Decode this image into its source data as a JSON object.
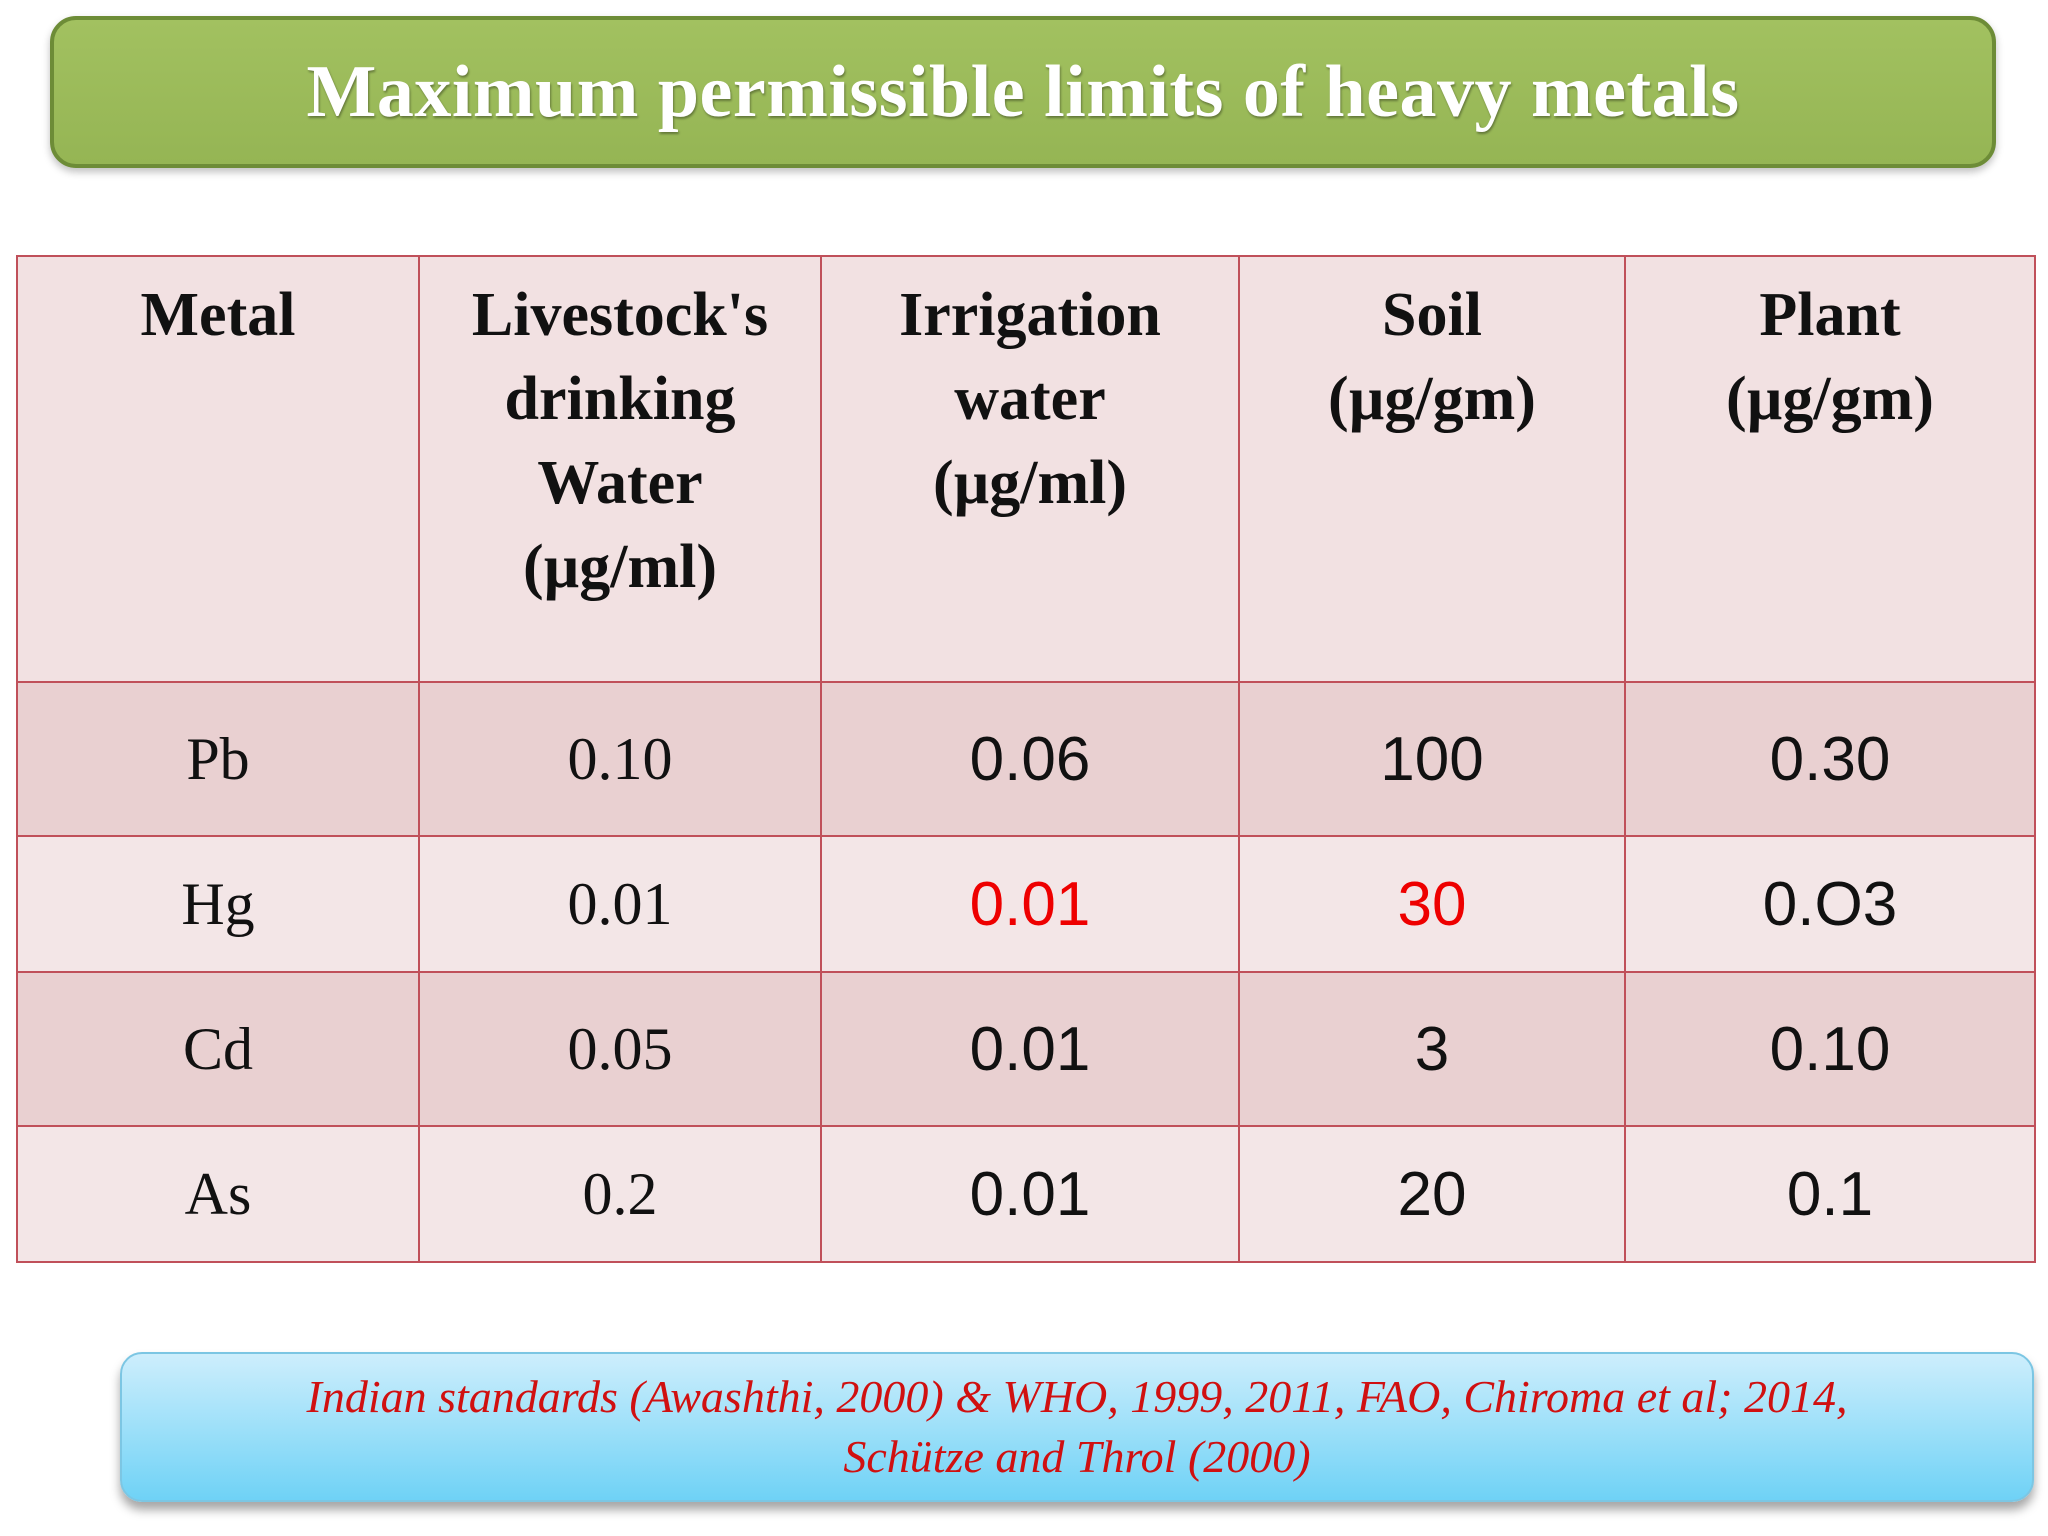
{
  "title": "Maximum permissible limits of heavy metals",
  "table": {
    "headers": [
      [
        "Metal"
      ],
      [
        "Livestock's",
        "drinking",
        "Water",
        "(µg/ml)"
      ],
      [
        "Irrigation",
        "water",
        "(µg/ml)"
      ],
      [
        "Soil",
        "(µg/gm)"
      ],
      [
        "Plant",
        "(µg/gm)"
      ]
    ],
    "rows": [
      {
        "metal": "Pb",
        "livestock": "0.10",
        "irrigation": "0.06",
        "soil": "100",
        "plant": "0.30"
      },
      {
        "metal": "Hg",
        "livestock": "0.01",
        "irrigation": "0.01",
        "soil": "30",
        "plant": "0.O3"
      },
      {
        "metal": "Cd",
        "livestock": "0.05",
        "irrigation": "0.01",
        "soil": "3",
        "plant": "0.10"
      },
      {
        "metal": "As",
        "livestock": "0.2",
        "irrigation": "0.01",
        "soil": "20",
        "plant": "0.1"
      }
    ]
  },
  "citation": {
    "line1": "Indian standards (Awashthi, 2000) & WHO, 1999, 2011, FAO, Chiroma et al; 2014,",
    "line2": "Schütze and Throl (2000)"
  },
  "colors": {
    "banner": "#9bbb59",
    "table_border": "#c0504d",
    "highlight": "#ee0000",
    "citation_text": "#d01010"
  }
}
